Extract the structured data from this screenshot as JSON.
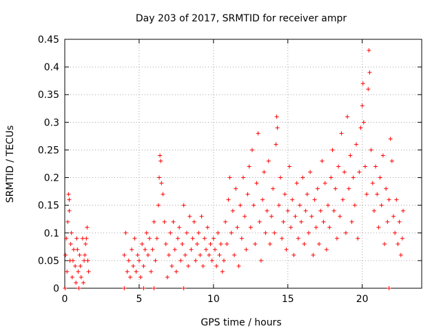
{
  "chart_data": {
    "type": "scatter",
    "title": "Day 203 of 2017, SRMTID for receiver ampr",
    "xlabel": "GPS time / hours",
    "ylabel": "SRMTID / TECUs",
    "xlim": [
      0,
      24
    ],
    "ylim": [
      0,
      0.45
    ],
    "xticks": [
      0,
      5,
      10,
      15,
      20
    ],
    "xtick_labels": [
      "0",
      "5",
      "10",
      "15",
      "20"
    ],
    "yticks": [
      0,
      0.05,
      0.1,
      0.15,
      0.2,
      0.25,
      0.3,
      0.35,
      0.4,
      0.45
    ],
    "ytick_labels": [
      "0",
      "0.05",
      "0.1",
      "0.15",
      "0.2",
      "0.25",
      "0.3",
      "0.35",
      "0.4",
      "0.45"
    ],
    "grid": true,
    "marker": "+",
    "color": "#ff0000",
    "series": [
      {
        "name": "SRMTID",
        "points": [
          [
            0.05,
            0.06
          ],
          [
            0.1,
            0.09
          ],
          [
            0.15,
            0.03
          ],
          [
            0.2,
            0.12
          ],
          [
            0.25,
            0.17
          ],
          [
            0.3,
            0.16
          ],
          [
            0.35,
            0.05
          ],
          [
            0.4,
            0.08
          ],
          [
            0.5,
            0.02
          ],
          [
            0.6,
            0.07
          ],
          [
            0.7,
            0.04
          ],
          [
            0.8,
            0.09
          ],
          [
            0.9,
            0.03
          ],
          [
            1.0,
            0.06
          ],
          [
            1.1,
            0.02
          ],
          [
            1.2,
            0.09
          ],
          [
            1.3,
            0.05
          ],
          [
            1.4,
            0.08
          ],
          [
            1.5,
            0.11
          ],
          [
            1.6,
            0.03
          ],
          [
            0.3,
            0.14
          ],
          [
            0.45,
            0.1
          ],
          [
            0.55,
            0.05
          ],
          [
            0.75,
            0.01
          ],
          [
            0.85,
            0.07
          ],
          [
            1.05,
            0.04
          ],
          [
            1.25,
            0.01
          ],
          [
            1.35,
            0.06
          ],
          [
            1.45,
            0.09
          ],
          [
            1.55,
            0.05
          ],
          [
            0.02,
            0.0
          ],
          [
            0.95,
            0.0
          ],
          [
            4.0,
            0.0
          ],
          [
            5.3,
            0.0
          ],
          [
            6.0,
            0.0
          ],
          [
            8.0,
            0.0
          ],
          [
            21.8,
            0.0
          ],
          [
            4.0,
            0.06
          ],
          [
            4.1,
            0.1
          ],
          [
            4.2,
            0.03
          ],
          [
            4.3,
            0.05
          ],
          [
            4.4,
            0.02
          ],
          [
            4.5,
            0.07
          ],
          [
            4.6,
            0.04
          ],
          [
            4.7,
            0.09
          ],
          [
            4.8,
            0.03
          ],
          [
            4.9,
            0.06
          ],
          [
            5.0,
            0.05
          ],
          [
            5.1,
            0.02
          ],
          [
            5.2,
            0.08
          ],
          [
            5.3,
            0.04
          ],
          [
            5.4,
            0.07
          ],
          [
            5.5,
            0.1
          ],
          [
            5.6,
            0.06
          ],
          [
            5.7,
            0.09
          ],
          [
            5.8,
            0.03
          ],
          [
            5.9,
            0.07
          ],
          [
            6.0,
            0.12
          ],
          [
            6.1,
            0.05
          ],
          [
            6.2,
            0.09
          ],
          [
            6.3,
            0.15
          ],
          [
            6.35,
            0.2
          ],
          [
            6.4,
            0.24
          ],
          [
            6.45,
            0.23
          ],
          [
            6.5,
            0.19
          ],
          [
            6.6,
            0.17
          ],
          [
            6.7,
            0.12
          ],
          [
            6.8,
            0.08
          ],
          [
            6.9,
            0.02
          ],
          [
            7.0,
            0.06
          ],
          [
            7.1,
            0.1
          ],
          [
            7.2,
            0.04
          ],
          [
            7.3,
            0.12
          ],
          [
            7.4,
            0.07
          ],
          [
            7.5,
            0.03
          ],
          [
            7.6,
            0.09
          ],
          [
            7.7,
            0.11
          ],
          [
            7.8,
            0.05
          ],
          [
            7.9,
            0.08
          ],
          [
            8.0,
            0.15
          ],
          [
            8.1,
            0.06
          ],
          [
            8.2,
            0.1
          ],
          [
            8.3,
            0.04
          ],
          [
            8.4,
            0.13
          ],
          [
            8.5,
            0.07
          ],
          [
            8.6,
            0.09
          ],
          [
            8.7,
            0.12
          ],
          [
            8.8,
            0.05
          ],
          [
            8.9,
            0.08
          ],
          [
            9.0,
            0.1
          ],
          [
            9.1,
            0.06
          ],
          [
            9.2,
            0.13
          ],
          [
            9.3,
            0.04
          ],
          [
            9.4,
            0.09
          ],
          [
            9.5,
            0.07
          ],
          [
            9.6,
            0.11
          ],
          [
            9.7,
            0.06
          ],
          [
            9.8,
            0.08
          ],
          [
            9.9,
            0.05
          ],
          [
            10.0,
            0.09
          ],
          [
            10.1,
            0.07
          ],
          [
            10.2,
            0.04
          ],
          [
            10.3,
            0.1
          ],
          [
            10.4,
            0.06
          ],
          [
            10.5,
            0.08
          ],
          [
            10.6,
            0.03
          ],
          [
            10.7,
            0.05
          ],
          [
            10.8,
            0.12
          ],
          [
            10.9,
            0.08
          ],
          [
            11.0,
            0.16
          ],
          [
            11.1,
            0.2
          ],
          [
            11.2,
            0.1
          ],
          [
            11.3,
            0.14
          ],
          [
            11.4,
            0.06
          ],
          [
            11.5,
            0.18
          ],
          [
            11.6,
            0.11
          ],
          [
            11.7,
            0.04
          ],
          [
            11.8,
            0.15
          ],
          [
            11.9,
            0.09
          ],
          [
            12.0,
            0.2
          ],
          [
            12.1,
            0.13
          ],
          [
            12.2,
            0.07
          ],
          [
            12.3,
            0.17
          ],
          [
            12.4,
            0.22
          ],
          [
            12.5,
            0.11
          ],
          [
            12.6,
            0.25
          ],
          [
            12.7,
            0.15
          ],
          [
            12.8,
            0.08
          ],
          [
            12.9,
            0.19
          ],
          [
            13.0,
            0.28
          ],
          [
            13.1,
            0.12
          ],
          [
            13.2,
            0.05
          ],
          [
            13.3,
            0.16
          ],
          [
            13.4,
            0.21
          ],
          [
            13.5,
            0.1
          ],
          [
            13.6,
            0.14
          ],
          [
            13.7,
            0.23
          ],
          [
            13.8,
            0.08
          ],
          [
            13.9,
            0.13
          ],
          [
            14.0,
            0.18
          ],
          [
            14.1,
            0.1
          ],
          [
            14.2,
            0.26
          ],
          [
            14.25,
            0.31
          ],
          [
            14.3,
            0.29
          ],
          [
            14.4,
            0.15
          ],
          [
            14.5,
            0.2
          ],
          [
            14.6,
            0.09
          ],
          [
            14.7,
            0.12
          ],
          [
            14.8,
            0.17
          ],
          [
            14.9,
            0.07
          ],
          [
            15.0,
            0.14
          ],
          [
            15.1,
            0.22
          ],
          [
            15.2,
            0.11
          ],
          [
            15.3,
            0.16
          ],
          [
            15.4,
            0.06
          ],
          [
            15.5,
            0.13
          ],
          [
            15.6,
            0.19
          ],
          [
            15.7,
            0.09
          ],
          [
            15.8,
            0.15
          ],
          [
            15.9,
            0.12
          ],
          [
            16.0,
            0.2
          ],
          [
            16.1,
            0.08
          ],
          [
            16.2,
            0.14
          ],
          [
            16.3,
            0.17
          ],
          [
            16.4,
            0.1
          ],
          [
            16.5,
            0.21
          ],
          [
            16.6,
            0.13
          ],
          [
            16.7,
            0.06
          ],
          [
            16.8,
            0.16
          ],
          [
            16.9,
            0.11
          ],
          [
            17.0,
            0.18
          ],
          [
            17.1,
            0.08
          ],
          [
            17.2,
            0.14
          ],
          [
            17.3,
            0.23
          ],
          [
            17.4,
            0.12
          ],
          [
            17.5,
            0.19
          ],
          [
            17.6,
            0.07
          ],
          [
            17.7,
            0.15
          ],
          [
            17.8,
            0.11
          ],
          [
            17.9,
            0.2
          ],
          [
            18.0,
            0.25
          ],
          [
            18.1,
            0.14
          ],
          [
            18.2,
            0.18
          ],
          [
            18.3,
            0.09
          ],
          [
            18.4,
            0.22
          ],
          [
            18.5,
            0.13
          ],
          [
            18.6,
            0.28
          ],
          [
            18.7,
            0.16
          ],
          [
            18.8,
            0.21
          ],
          [
            18.9,
            0.1
          ],
          [
            19.0,
            0.31
          ],
          [
            19.1,
            0.18
          ],
          [
            19.2,
            0.24
          ],
          [
            19.3,
            0.12
          ],
          [
            19.4,
            0.2
          ],
          [
            19.5,
            0.15
          ],
          [
            19.6,
            0.26
          ],
          [
            19.7,
            0.09
          ],
          [
            19.8,
            0.21
          ],
          [
            19.9,
            0.29
          ],
          [
            20.0,
            0.33
          ],
          [
            20.05,
            0.37
          ],
          [
            20.1,
            0.3
          ],
          [
            20.2,
            0.22
          ],
          [
            20.3,
            0.17
          ],
          [
            20.4,
            0.36
          ],
          [
            20.45,
            0.43
          ],
          [
            20.5,
            0.39
          ],
          [
            20.6,
            0.25
          ],
          [
            20.7,
            0.19
          ],
          [
            20.8,
            0.14
          ],
          [
            20.9,
            0.22
          ],
          [
            21.0,
            0.17
          ],
          [
            21.1,
            0.11
          ],
          [
            21.2,
            0.2
          ],
          [
            21.3,
            0.15
          ],
          [
            21.4,
            0.24
          ],
          [
            21.5,
            0.08
          ],
          [
            21.6,
            0.18
          ],
          [
            21.7,
            0.12
          ],
          [
            21.8,
            0.16
          ],
          [
            21.9,
            0.27
          ],
          [
            22.0,
            0.23
          ],
          [
            22.1,
            0.13
          ],
          [
            22.2,
            0.1
          ],
          [
            22.3,
            0.16
          ],
          [
            22.4,
            0.08
          ],
          [
            22.5,
            0.12
          ],
          [
            22.6,
            0.06
          ],
          [
            22.7,
            0.09
          ],
          [
            22.75,
            0.14
          ]
        ]
      }
    ]
  }
}
